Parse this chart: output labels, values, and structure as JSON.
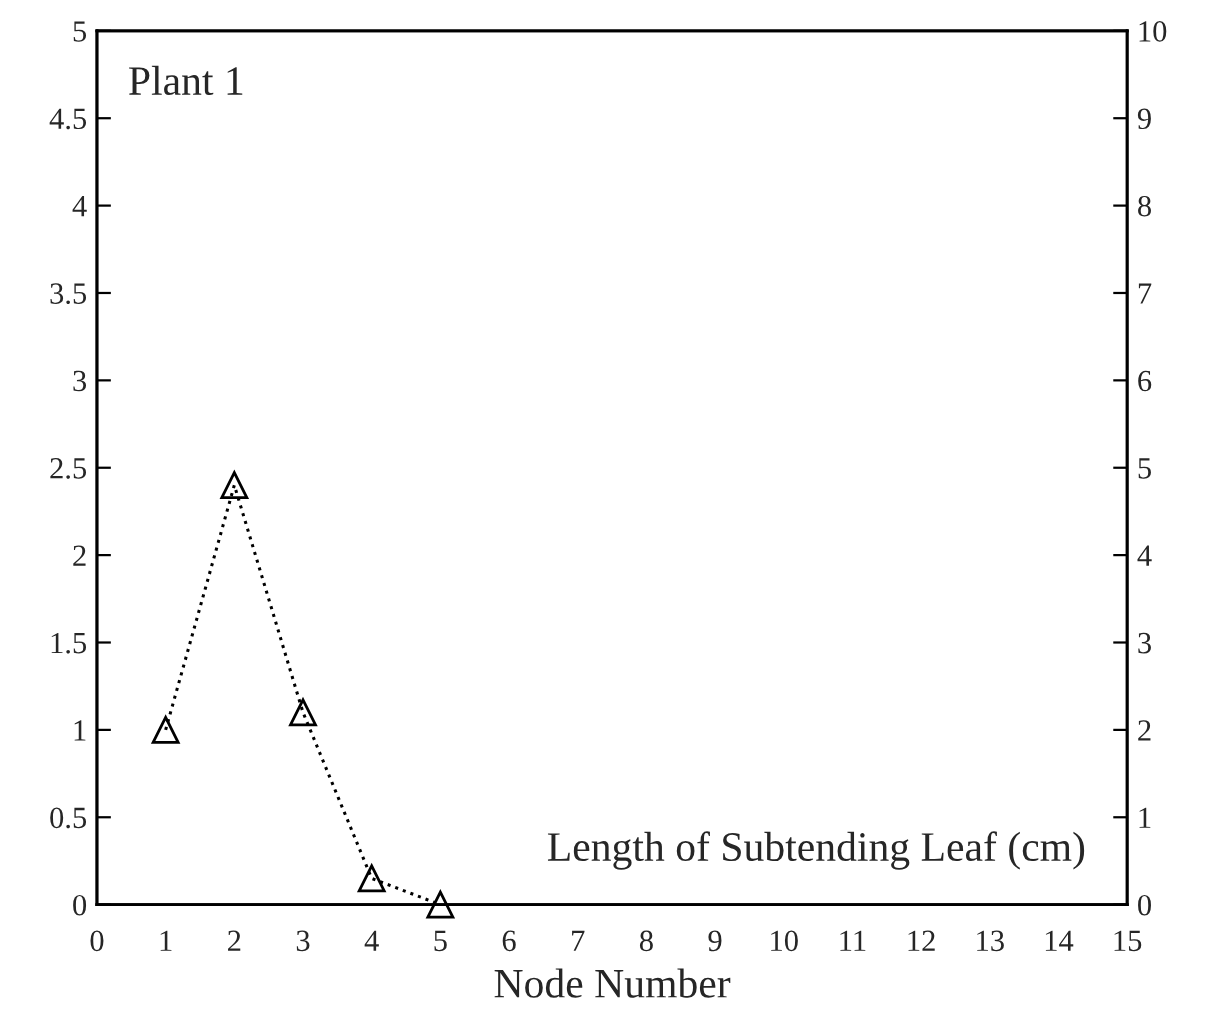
{
  "chart_data": {
    "type": "line",
    "title": "Plant 1",
    "xlabel": "Node Number",
    "annotations": [
      "Length of Subtending Leaf (cm)"
    ],
    "x": [
      1,
      2,
      3,
      4,
      5
    ],
    "series": [
      {
        "color": "#000000",
        "values": [
          1.0,
          2.4,
          1.1,
          0.15,
          0.0
        ]
      }
    ],
    "marker": "triangle",
    "line_style": "dotted",
    "grid": false,
    "xlim": [
      0,
      15
    ],
    "xticks": [
      0,
      1,
      2,
      3,
      4,
      5,
      6,
      7,
      8,
      9,
      10,
      11,
      12,
      13,
      14,
      15
    ],
    "ylim": [
      0,
      5
    ],
    "yticks": [
      0,
      0.5,
      1,
      1.5,
      2,
      2.5,
      3,
      3.5,
      4,
      4.5,
      5
    ],
    "y2lim": [
      0,
      10
    ],
    "y2ticks": [
      0,
      1,
      2,
      3,
      4,
      5,
      6,
      7,
      8,
      9,
      10
    ]
  }
}
